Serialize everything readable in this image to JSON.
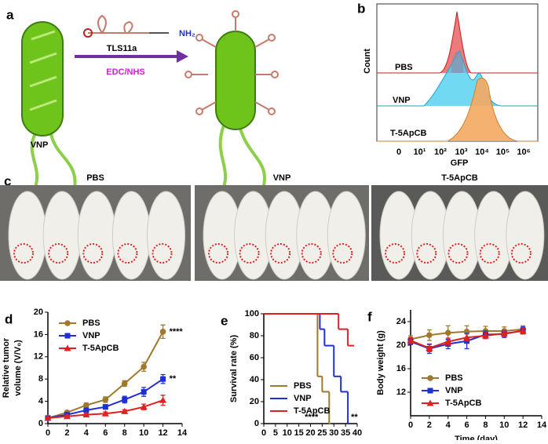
{
  "panel_a": {
    "label": "a",
    "reagent": "TLS11a",
    "amine": "NH₂",
    "condition": "EDC/NHS",
    "bacterium": "VNP"
  },
  "panel_b": {
    "label": "b",
    "ylabel": "Count",
    "xlabel": "GFP",
    "samples": [
      "PBS",
      "VNP",
      "T-5ApCB"
    ],
    "xtick_labels": [
      "0",
      "10¹",
      "10²",
      "10³",
      "10⁴",
      "10⁵",
      "10⁶"
    ]
  },
  "panel_c": {
    "label": "c",
    "groups": [
      "PBS",
      "VNP",
      "T-5ApCB"
    ]
  },
  "chart_data": [
    {
      "type": "line",
      "panel_label": "d",
      "xlabel": "Time (day)",
      "ylabel": [
        "Relative tumor",
        "volume (V/V₀)"
      ],
      "x": [
        0,
        2,
        4,
        6,
        8,
        10,
        12
      ],
      "xlim": [
        0,
        14
      ],
      "xticks": [
        0,
        2,
        4,
        6,
        8,
        10,
        12,
        14
      ],
      "ylim": [
        0,
        20
      ],
      "yticks": [
        0,
        4,
        8,
        12,
        16,
        20
      ],
      "legend": "upper left",
      "series": [
        {
          "name": "PBS",
          "color": "#a0782e",
          "marker": "circle",
          "values": [
            1,
            2.0,
            3.3,
            4.3,
            7.2,
            10.2,
            16.5
          ],
          "errors": [
            0.1,
            0.3,
            0.4,
            0.5,
            0.5,
            0.8,
            1.2
          ]
        },
        {
          "name": "VNP",
          "color": "#1f2fd6",
          "marker": "square",
          "values": [
            1,
            1.6,
            2.4,
            3.0,
            4.3,
            5.7,
            8.0
          ],
          "errors": [
            0.1,
            0.2,
            0.3,
            0.4,
            0.6,
            0.8,
            0.8
          ]
        },
        {
          "name": "T-5ApCB",
          "color": "#e02020",
          "marker": "triangle",
          "values": [
            1,
            1.3,
            1.6,
            1.8,
            2.2,
            3.0,
            4.2
          ],
          "errors": [
            0.1,
            0.2,
            0.2,
            0.3,
            0.3,
            0.5,
            0.9
          ]
        }
      ],
      "annotations": [
        "****",
        "**"
      ]
    },
    {
      "type": "step",
      "panel_label": "e",
      "xlabel": "Time (day)",
      "ylabel": [
        "Survival rate (%)"
      ],
      "xlim": [
        0,
        40
      ],
      "xticks": [
        0,
        5,
        10,
        15,
        20,
        25,
        30,
        35,
        40
      ],
      "ylim": [
        0,
        100
      ],
      "yticks": [
        0,
        20,
        40,
        60,
        80,
        100
      ],
      "legend": "lower left",
      "series": [
        {
          "name": "PBS",
          "color": "#a0782e",
          "x": [
            0,
            23,
            25,
            28
          ],
          "values": [
            100,
            43,
            29,
            0
          ]
        },
        {
          "name": "VNP",
          "color": "#1f2fd6",
          "x": [
            0,
            24,
            26,
            30,
            33,
            36
          ],
          "values": [
            100,
            86,
            71,
            43,
            29,
            0
          ]
        },
        {
          "name": "T-5ApCB",
          "color": "#e02020",
          "x": [
            0,
            32,
            36,
            38
          ],
          "values": [
            100,
            86,
            71,
            71
          ]
        }
      ],
      "annotations": [
        "****",
        "**"
      ]
    },
    {
      "type": "line",
      "panel_label": "f",
      "xlabel": "Time (day)",
      "ylabel": [
        "Body weight (g)"
      ],
      "x": [
        0,
        2,
        4,
        6,
        8,
        10,
        12
      ],
      "xlim": [
        0,
        14
      ],
      "xticks": [
        0,
        2,
        4,
        6,
        8,
        10,
        12,
        14
      ],
      "ylim": [
        8,
        26
      ],
      "yticks": [
        12,
        16,
        20,
        24
      ],
      "legend": "lower left",
      "series": [
        {
          "name": "PBS",
          "color": "#a0782e",
          "marker": "circle",
          "values": [
            21,
            21.7,
            22.1,
            22.3,
            22.4,
            22.4,
            22.7
          ],
          "errors": [
            0.6,
            0.9,
            1.2,
            1.0,
            0.8,
            0.7,
            0.6
          ]
        },
        {
          "name": "VNP",
          "color": "#1f2fd6",
          "marker": "square",
          "values": [
            20.6,
            19.4,
            20.2,
            20.7,
            21.8,
            21.9,
            22.5
          ],
          "errors": [
            0.5,
            0.8,
            0.8,
            1.3,
            0.6,
            0.6,
            0.6
          ]
        },
        {
          "name": "T-5ApCB",
          "color": "#e02020",
          "marker": "triangle",
          "values": [
            20.8,
            19.5,
            20.6,
            21.3,
            21.6,
            22.0,
            22.4
          ],
          "errors": [
            0.5,
            0.6,
            0.6,
            0.6,
            0.5,
            0.5,
            0.5
          ]
        }
      ]
    }
  ]
}
